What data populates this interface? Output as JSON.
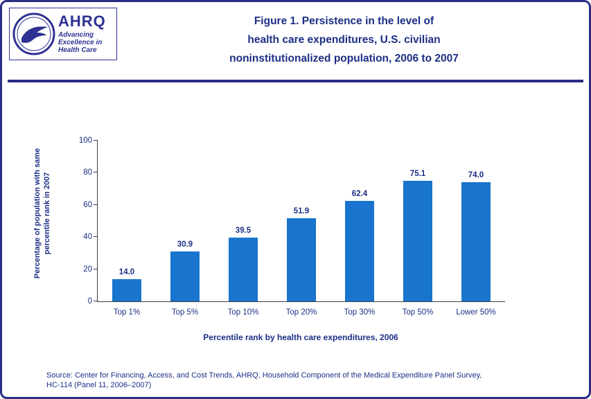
{
  "header": {
    "logo": {
      "org": "AHRQ",
      "tagline_lines": [
        "Advancing",
        "Excellence in",
        "Health Care"
      ]
    },
    "title_lines": [
      "Figure 1. Persistence in the level of",
      "health care expenditures, U.S. civilian",
      "noninstitutionalized population, 2006 to 2007"
    ]
  },
  "chart_data": {
    "type": "bar",
    "categories": [
      "Top 1%",
      "Top 5%",
      "Top 10%",
      "Top 20%",
      "Top 30%",
      "Top 50%",
      "Lower 50%"
    ],
    "values": [
      14.0,
      30.9,
      39.5,
      51.9,
      62.4,
      75.1,
      74.0
    ],
    "value_labels": [
      "14.0",
      "30.9",
      "39.5",
      "51.9",
      "62.4",
      "75.1",
      "74.0"
    ],
    "title": "",
    "xlabel": "Percentile rank by health care expenditures, 2006",
    "ylabel_lines": [
      "Percentage of population with same",
      "percentile rank in 2007"
    ],
    "ylim": [
      0,
      100
    ],
    "yticks": [
      0,
      20,
      40,
      60,
      80,
      100
    ],
    "grid": false,
    "legend": null,
    "bar_color": "#1874cd"
  },
  "footer": {
    "source_lines": [
      "Source: Center for Financing, Access, and Cost Trends, AHRQ, Household Component of the Medical Expenditure Panel Survey,",
      "HC-114 (Panel 11, 2006–2007)"
    ]
  },
  "colors": {
    "border_navy": "#2b2e83",
    "text_navy": "#1c2e85",
    "logo_blue": "#2e3192",
    "bar_blue": "#1874cd"
  }
}
